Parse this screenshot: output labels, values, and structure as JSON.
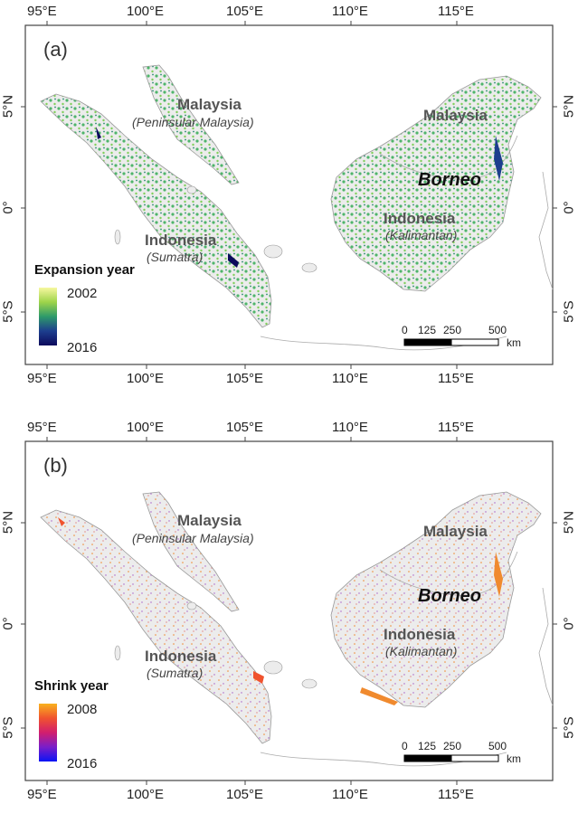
{
  "axes": {
    "lon_ticks": [
      "95°E",
      "100°E",
      "105°E",
      "110°E",
      "115°E"
    ],
    "lat_ticks": [
      "5°N",
      "0°",
      "5°S"
    ]
  },
  "panels": [
    {
      "label": "(a)",
      "legend": {
        "title": "Expansion year",
        "start": "2002",
        "end": "2016",
        "colors": [
          "#f7f7a0",
          "#9ed44a",
          "#2e9a6a",
          "#1d3e8e",
          "#0c0a5c"
        ]
      },
      "labels": {
        "malaysia_pen": "Malaysia",
        "pen_region": "(Peninsular Malaysia)",
        "malaysia_bor": "Malaysia",
        "borneo": "Borneo",
        "indonesia_kal": "Indonesia",
        "kal_region": "(Kalimantan)",
        "indonesia_sum": "Indonesia",
        "sum_region": "(Sumatra)"
      },
      "scalebar": {
        "ticks": [
          "0",
          "125",
          "250",
          "500"
        ],
        "unit": "km"
      }
    },
    {
      "label": "(b)",
      "legend": {
        "title": "Shrink year",
        "start": "2008",
        "end": "2016",
        "colors": [
          "#f9b21e",
          "#f0532e",
          "#d21e6e",
          "#7a1ec9",
          "#0a14f5"
        ]
      },
      "labels": {
        "malaysia_pen": "Malaysia",
        "pen_region": "(Peninsular Malaysia)",
        "malaysia_bor": "Malaysia",
        "borneo": "Borneo",
        "indonesia_kal": "Indonesia",
        "kal_region": "(Kalimantan)",
        "indonesia_sum": "Indonesia",
        "sum_region": "(Sumatra)"
      },
      "scalebar": {
        "ticks": [
          "0",
          "125",
          "250",
          "500"
        ],
        "unit": "km"
      }
    }
  ]
}
